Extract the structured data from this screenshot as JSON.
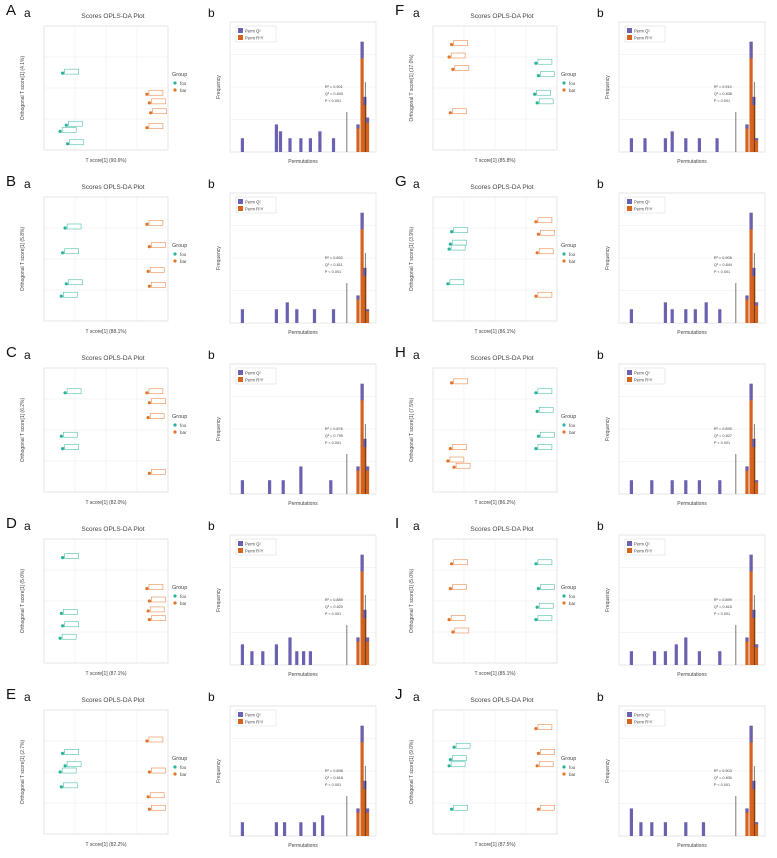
{
  "colors": {
    "group_a": "#2bb39a",
    "group_b": "#e3742a",
    "perm_r2": "#6a62b0",
    "perm_q2": "#d5631d",
    "grid": "#ececec",
    "axis": "#888888"
  },
  "common": {
    "scores_title": "Scores OPLS-DA Plot",
    "legend_title": "Group",
    "perm_xlabel": "Permutations",
    "perm_ylabel": "Frequency",
    "perm_legend": [
      "Perm Q²",
      "Perm R²Y"
    ],
    "sub_a": "a",
    "sub_b": "b"
  },
  "panels": [
    {
      "letter": "A",
      "scores": {
        "xlabel": "T score[1] (90.6%)",
        "ylabel": "Orthogonal T score[1] (4.1%)",
        "legend": [
          "foo",
          "bar"
        ],
        "a_points": [
          [
            -30,
            62
          ],
          [
            -27,
            20
          ],
          [
            -26,
            5
          ],
          [
            -32,
            15
          ]
        ],
        "b_points": [
          [
            38,
            45
          ],
          [
            40,
            38
          ],
          [
            41,
            30
          ],
          [
            38,
            18
          ]
        ]
      },
      "perm": {
        "bars_r2": [
          [
            0.05,
            1
          ],
          [
            0.3,
            2
          ],
          [
            0.33,
            1.5
          ],
          [
            0.4,
            1
          ],
          [
            0.48,
            1
          ],
          [
            0.55,
            1
          ],
          [
            0.62,
            1.5
          ],
          [
            0.72,
            1
          ]
        ],
        "bars_q2": [
          [
            0.9,
            2
          ],
          [
            0.93,
            8
          ],
          [
            0.95,
            4
          ],
          [
            0.97,
            2.5
          ]
        ],
        "labels": [
          "R² = 0.901",
          "Q² = 0.843",
          "P < 0.001"
        ]
      }
    },
    {
      "letter": "B",
      "scores": {
        "xlabel": "T score[1] (88.1%)",
        "ylabel": "Orthogonal T score[1] (5.8%)",
        "legend": [
          "foo",
          "bar"
        ],
        "a_points": [
          [
            -28,
            75
          ],
          [
            -30,
            55
          ],
          [
            -27,
            30
          ],
          [
            -31,
            20
          ]
        ],
        "b_points": [
          [
            38,
            78
          ],
          [
            40,
            60
          ],
          [
            39,
            40
          ],
          [
            40,
            28
          ]
        ]
      },
      "perm": {
        "bars_r2": [
          [
            0.05,
            1
          ],
          [
            0.3,
            1
          ],
          [
            0.38,
            1.5
          ],
          [
            0.45,
            1
          ],
          [
            0.58,
            1
          ],
          [
            0.72,
            1
          ]
        ],
        "bars_q2": [
          [
            0.9,
            2
          ],
          [
            0.93,
            8
          ],
          [
            0.95,
            4
          ],
          [
            0.97,
            1
          ]
        ],
        "labels": [
          "R² = 0.892",
          "Q² = 0.811",
          "P < 0.001"
        ]
      }
    },
    {
      "letter": "C",
      "scores": {
        "xlabel": "T score[1] (82.0%)",
        "ylabel": "Orthogonal T score[1] (6.2%)",
        "legend": [
          "foo",
          "bar"
        ],
        "a_points": [
          [
            -28,
            80
          ],
          [
            -31,
            45
          ],
          [
            -30,
            35
          ]
        ],
        "b_points": [
          [
            38,
            80
          ],
          [
            40,
            72
          ],
          [
            39,
            60
          ],
          [
            40,
            15
          ]
        ]
      },
      "perm": {
        "bars_r2": [
          [
            0.05,
            1
          ],
          [
            0.25,
            1
          ],
          [
            0.35,
            1
          ],
          [
            0.48,
            2
          ],
          [
            0.7,
            1
          ]
        ],
        "bars_q2": [
          [
            0.9,
            2
          ],
          [
            0.93,
            8
          ],
          [
            0.95,
            4
          ],
          [
            0.97,
            2
          ]
        ],
        "labels": [
          "R² = 0.876",
          "Q² = 0.799",
          "P < 0.001"
        ]
      }
    },
    {
      "letter": "D",
      "scores": {
        "xlabel": "T score[1] (87.1%)",
        "ylabel": "Orthogonal T score[1] (5.0%)",
        "legend": [
          "foo",
          "bar"
        ],
        "a_points": [
          [
            -30,
            85
          ],
          [
            -31,
            40
          ],
          [
            -30,
            30
          ],
          [
            -32,
            20
          ]
        ],
        "b_points": [
          [
            38,
            60
          ],
          [
            40,
            50
          ],
          [
            39,
            42
          ],
          [
            40,
            35
          ]
        ]
      },
      "perm": {
        "bars_r2": [
          [
            0.05,
            1.5
          ],
          [
            0.12,
            1
          ],
          [
            0.2,
            1
          ],
          [
            0.3,
            1.5
          ],
          [
            0.4,
            2
          ],
          [
            0.45,
            1
          ],
          [
            0.5,
            1
          ],
          [
            0.55,
            1
          ]
        ],
        "bars_q2": [
          [
            0.9,
            2
          ],
          [
            0.93,
            8
          ],
          [
            0.95,
            4
          ],
          [
            0.97,
            2
          ]
        ],
        "labels": [
          "R² = 0.889",
          "Q² = 0.820",
          "P < 0.001"
        ]
      }
    },
    {
      "letter": "E",
      "scores": {
        "xlabel": "T score[1] (82.2%)",
        "ylabel": "Orthogonal T score[1] (2.7%)",
        "legend": [
          "foo",
          "bar"
        ],
        "a_points": [
          [
            -30,
            65
          ],
          [
            -28,
            55
          ],
          [
            -32,
            50
          ],
          [
            -31,
            38
          ]
        ],
        "b_points": [
          [
            38,
            75
          ],
          [
            40,
            50
          ],
          [
            39,
            30
          ],
          [
            40,
            20
          ]
        ]
      },
      "perm": {
        "bars_r2": [
          [
            0.05,
            1
          ],
          [
            0.3,
            1
          ],
          [
            0.36,
            1
          ],
          [
            0.48,
            1
          ],
          [
            0.58,
            1
          ],
          [
            0.64,
            1.5
          ]
        ],
        "bars_q2": [
          [
            0.9,
            2
          ],
          [
            0.93,
            8
          ],
          [
            0.95,
            4
          ],
          [
            0.97,
            2
          ]
        ],
        "labels": [
          "R² = 0.898",
          "Q² = 0.818",
          "P < 0.001"
        ]
      }
    },
    {
      "letter": "F",
      "scores": {
        "xlabel": "T score[1] (85.8%)",
        "ylabel": "Orthogonal T score[1] (17.0%)",
        "legend": [
          "foo",
          "bar"
        ],
        "a_points": [
          [
            38,
            70
          ],
          [
            40,
            60
          ],
          [
            37,
            45
          ],
          [
            39,
            38
          ]
        ],
        "b_points": [
          [
            -30,
            85
          ],
          [
            -32,
            75
          ],
          [
            -29,
            65
          ],
          [
            -31,
            30
          ]
        ]
      },
      "perm": {
        "bars_r2": [
          [
            0.05,
            1
          ],
          [
            0.15,
            1
          ],
          [
            0.3,
            1
          ],
          [
            0.35,
            1.5
          ],
          [
            0.45,
            1
          ],
          [
            0.55,
            1
          ],
          [
            0.68,
            1
          ]
        ],
        "bars_q2": [
          [
            0.9,
            2
          ],
          [
            0.93,
            8
          ],
          [
            0.95,
            4
          ],
          [
            0.97,
            1
          ]
        ],
        "labels": [
          "R² = 0.910",
          "Q² = 0.838",
          "P < 0.001"
        ]
      }
    },
    {
      "letter": "G",
      "scores": {
        "xlabel": "T score[1] (86.1%)",
        "ylabel": "Orthogonal T score[1] (3.9%)",
        "legend": [
          "foo",
          "bar"
        ],
        "a_points": [
          [
            -30,
            72
          ],
          [
            -31,
            62
          ],
          [
            -32,
            58
          ],
          [
            -33,
            30
          ]
        ],
        "b_points": [
          [
            38,
            80
          ],
          [
            40,
            70
          ],
          [
            39,
            55
          ],
          [
            38,
            20
          ]
        ]
      },
      "perm": {
        "bars_r2": [
          [
            0.05,
            1
          ],
          [
            0.3,
            1.5
          ],
          [
            0.35,
            1
          ],
          [
            0.45,
            1
          ],
          [
            0.52,
            1
          ],
          [
            0.6,
            1.5
          ],
          [
            0.7,
            1
          ]
        ],
        "bars_q2": [
          [
            0.9,
            2
          ],
          [
            0.93,
            8
          ],
          [
            0.95,
            4
          ],
          [
            0.97,
            1.5
          ]
        ],
        "labels": [
          "R² = 0.908",
          "Q² = 0.844",
          "P < 0.001"
        ]
      }
    },
    {
      "letter": "H",
      "scores": {
        "xlabel": "T score[1] (86.2%)",
        "ylabel": "Orthogonal T score[1] (7.5%)",
        "legend": [
          "foo",
          "bar"
        ],
        "a_points": [
          [
            38,
            80
          ],
          [
            39,
            65
          ],
          [
            40,
            45
          ],
          [
            38,
            35
          ]
        ],
        "b_points": [
          [
            -30,
            88
          ],
          [
            -31,
            35
          ],
          [
            -33,
            25
          ],
          [
            -28,
            20
          ]
        ]
      },
      "perm": {
        "bars_r2": [
          [
            0.05,
            1
          ],
          [
            0.2,
            1
          ],
          [
            0.35,
            1
          ],
          [
            0.45,
            1
          ],
          [
            0.55,
            1
          ],
          [
            0.7,
            1
          ]
        ],
        "bars_q2": [
          [
            0.9,
            2
          ],
          [
            0.93,
            8
          ],
          [
            0.95,
            4
          ],
          [
            0.97,
            1
          ]
        ],
        "labels": [
          "R² = 0.895",
          "Q² = 0.827",
          "P < 0.001"
        ]
      }
    },
    {
      "letter": "I",
      "scores": {
        "xlabel": "T score[1] (85.1%)",
        "ylabel": "Orthogonal T score[1] (5.0%)",
        "legend": [
          "foo",
          "bar"
        ],
        "a_points": [
          [
            38,
            80
          ],
          [
            40,
            60
          ],
          [
            39,
            45
          ],
          [
            38,
            35
          ]
        ],
        "b_points": [
          [
            -30,
            80
          ],
          [
            -31,
            60
          ],
          [
            -32,
            35
          ],
          [
            -29,
            25
          ]
        ]
      },
      "perm": {
        "bars_r2": [
          [
            0.05,
            1
          ],
          [
            0.22,
            1
          ],
          [
            0.3,
            1
          ],
          [
            0.38,
            1.5
          ],
          [
            0.45,
            2
          ],
          [
            0.55,
            1
          ],
          [
            0.7,
            1
          ]
        ],
        "bars_q2": [
          [
            0.9,
            2
          ],
          [
            0.93,
            8
          ],
          [
            0.95,
            4
          ],
          [
            0.97,
            1.5
          ]
        ],
        "labels": [
          "R² = 0.899",
          "Q² = 0.815",
          "P < 0.001"
        ]
      }
    },
    {
      "letter": "J",
      "scores": {
        "xlabel": "T score[1] (87.5%)",
        "ylabel": "Orthogonal T score[1] (9.0%)",
        "legend": [
          "foo",
          "bar"
        ],
        "a_points": [
          [
            -28,
            70
          ],
          [
            -31,
            60
          ],
          [
            -32,
            55
          ],
          [
            -30,
            20
          ]
        ],
        "b_points": [
          [
            38,
            85
          ],
          [
            40,
            65
          ],
          [
            39,
            55
          ],
          [
            40,
            20
          ]
        ]
      },
      "perm": {
        "bars_r2": [
          [
            0.05,
            2
          ],
          [
            0.12,
            1
          ],
          [
            0.2,
            1
          ],
          [
            0.3,
            1
          ],
          [
            0.45,
            1
          ],
          [
            0.58,
            1
          ]
        ],
        "bars_q2": [
          [
            0.9,
            2
          ],
          [
            0.93,
            8
          ],
          [
            0.95,
            4
          ],
          [
            0.97,
            1
          ]
        ],
        "labels": [
          "R² = 0.903",
          "Q² = 0.830",
          "P < 0.001"
        ]
      }
    }
  ],
  "chart_data": [
    {
      "type": "scatter",
      "title": "Scores OPLS-DA Plot",
      "note": "ten score plots; see panels"
    },
    {
      "type": "bar",
      "title": "",
      "xlabel": "Permutations",
      "ylabel": "Frequency"
    }
  ]
}
